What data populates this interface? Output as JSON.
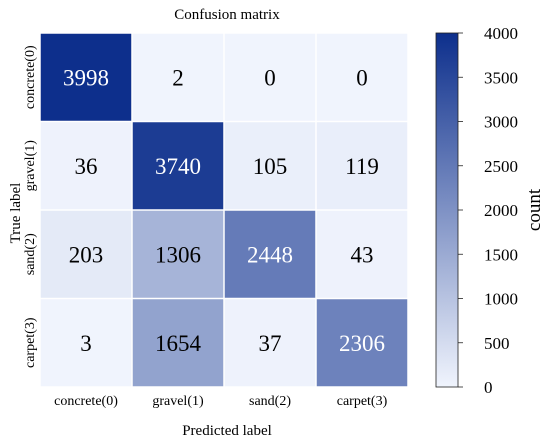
{
  "chart_data": {
    "type": "heatmap",
    "title": "Confusion matrix",
    "xlabel": "Predicted label",
    "ylabel": "True  label",
    "x_categories": [
      "concrete(0)",
      "gravel(1)",
      "sand(2)",
      "carpet(3)"
    ],
    "y_categories": [
      "concrete(0)",
      "gravel(1)",
      "sand(2)",
      "carpet(3)"
    ],
    "values": [
      [
        3998,
        2,
        0,
        0
      ],
      [
        36,
        3740,
        105,
        119
      ],
      [
        203,
        1306,
        2448,
        43
      ],
      [
        3,
        1654,
        37,
        2306
      ]
    ],
    "colorbar": {
      "label": "count",
      "range": [
        0,
        4000
      ],
      "ticks": [
        0,
        500,
        1000,
        1500,
        2000,
        2500,
        3000,
        3500,
        4000
      ],
      "colors": [
        "#f0f4fd",
        "#0d2f8c"
      ]
    },
    "cell_gap_color": "#ffffff"
  }
}
